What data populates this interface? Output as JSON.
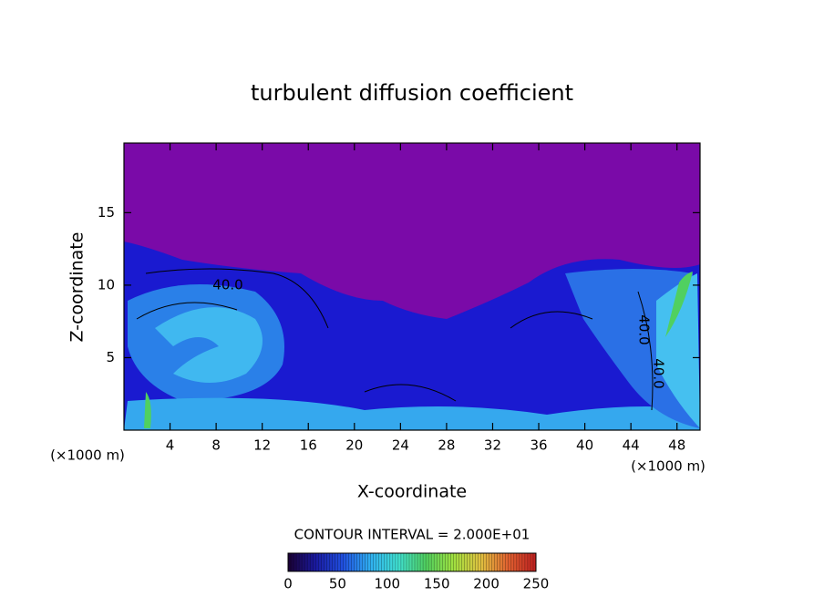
{
  "chart_data": {
    "type": "contour",
    "title": "turbulent diffusion coefficient",
    "x_label": "X-coordinate",
    "y_label": "Z-coordinate",
    "x_unit": "(×1000 m)",
    "y_unit": "(×1000 m)",
    "xlim": [
      0,
      50
    ],
    "xticks": [
      4,
      8,
      12,
      16,
      20,
      24,
      28,
      32,
      36,
      40,
      44,
      48
    ],
    "ylim": [
      0,
      19.8
    ],
    "yticks": [
      5,
      10,
      15
    ],
    "contour_interval_label": "CONTOUR INTERVAL = 2.000E+01",
    "contour_labels": [
      "40.0",
      "40.0",
      "40.0"
    ],
    "colorbar": {
      "lim": [
        0,
        250
      ],
      "ticks": [
        0,
        50,
        100,
        150,
        200,
        250
      ],
      "colors": [
        "#1a0033",
        "#1a1aa0",
        "#2050e0",
        "#30b0f0",
        "#40e0d0",
        "#50d060",
        "#a0e040",
        "#e0c040",
        "#e06030",
        "#c02020"
      ]
    },
    "background_color": "#7a0aa8"
  }
}
